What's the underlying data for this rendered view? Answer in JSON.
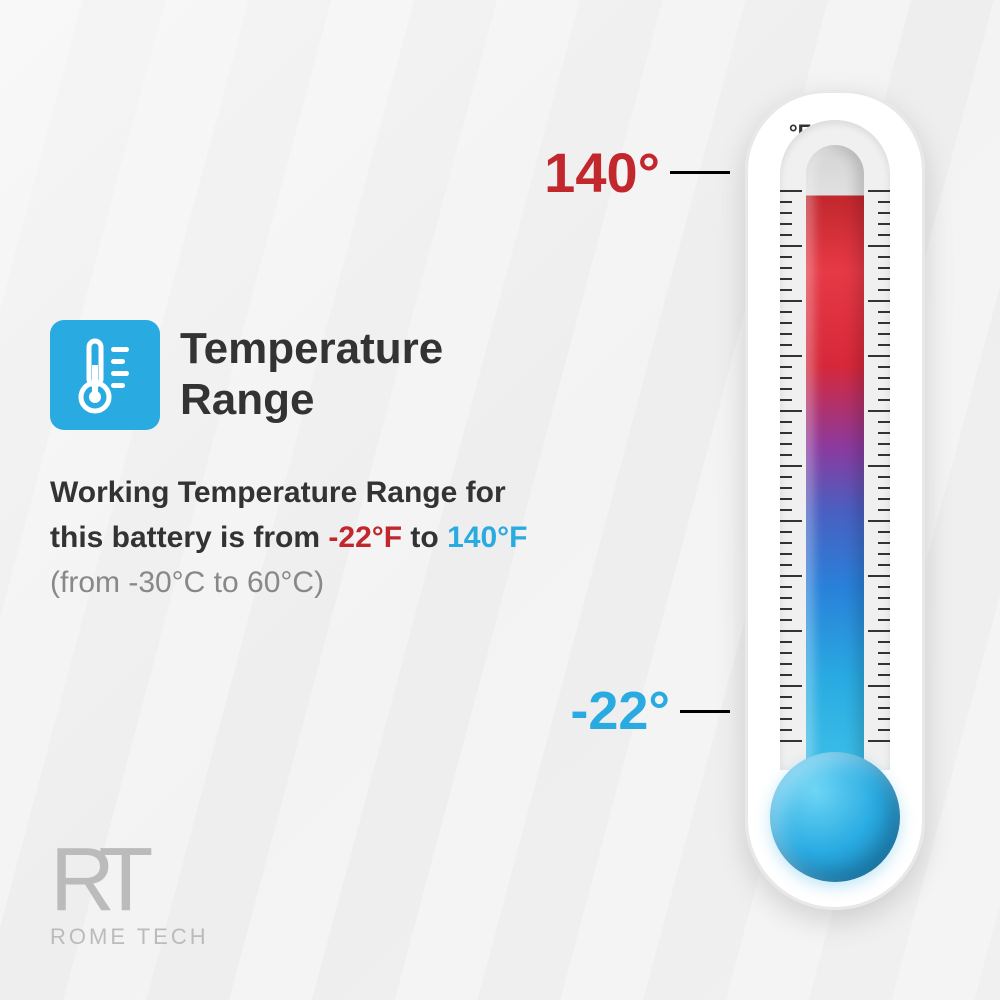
{
  "title": "Temperature Range",
  "desc": {
    "line1": "Working Temperature Range for this battery is from ",
    "low": "-22°F",
    "mid": " to ",
    "high": "140°F",
    "note": "(from -30°C to 60°C)"
  },
  "thermometer": {
    "unit": "°F",
    "high_label": "140°",
    "low_label": "-22°",
    "colors": {
      "hot": "#c1272d",
      "cold": "#29abe2",
      "icon_bg": "#29abe2",
      "body": "#ffffff"
    },
    "tick_count": 50,
    "major_every": 5
  },
  "logo": {
    "mark": "RT",
    "text": "ROME TECH"
  }
}
